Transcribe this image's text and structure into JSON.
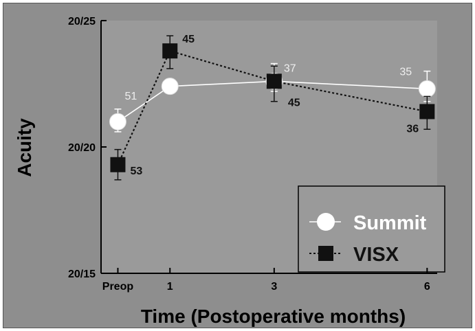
{
  "chart_data": {
    "type": "line",
    "xlabel": "Time (Postoperative months)",
    "ylabel": "Acuity",
    "categories": [
      "Preop",
      "1",
      "3",
      "6"
    ],
    "y_ticks": [
      {
        "label": "20/25",
        "value": 25
      },
      {
        "label": "20/20",
        "value": 20
      },
      {
        "label": "20/15",
        "value": 15
      }
    ],
    "ylim": [
      15,
      25
    ],
    "grid": false,
    "legend_position": "bottom-right",
    "series": [
      {
        "name": "Summit",
        "marker": "circle",
        "line_style": "solid",
        "color": "#ffffff",
        "values": [
          21.0,
          22.4,
          22.6,
          22.3
        ],
        "error_upper": [
          21.5,
          22.6,
          23.3,
          23.0
        ],
        "error_lower": [
          20.6,
          22.2,
          22.2,
          21.8
        ],
        "labels": [
          "51",
          "",
          "37",
          "35"
        ]
      },
      {
        "name": "VISX",
        "marker": "square",
        "line_style": "dotted",
        "color": "#111111",
        "values": [
          19.3,
          23.8,
          22.6,
          21.4
        ],
        "error_upper": [
          19.9,
          24.4,
          23.2,
          22.0
        ],
        "error_lower": [
          18.7,
          23.1,
          21.8,
          20.7
        ],
        "labels": [
          "53",
          "45",
          "45",
          "36"
        ]
      }
    ]
  },
  "colors": {
    "background": "#8e8e8e",
    "plot_background": "#9a9a9a",
    "axis": "#000000",
    "summit_label": "#eeeeee",
    "visx_label": "#111111",
    "legend_summit_text": "#ffffff",
    "legend_visx_text": "#111111"
  }
}
